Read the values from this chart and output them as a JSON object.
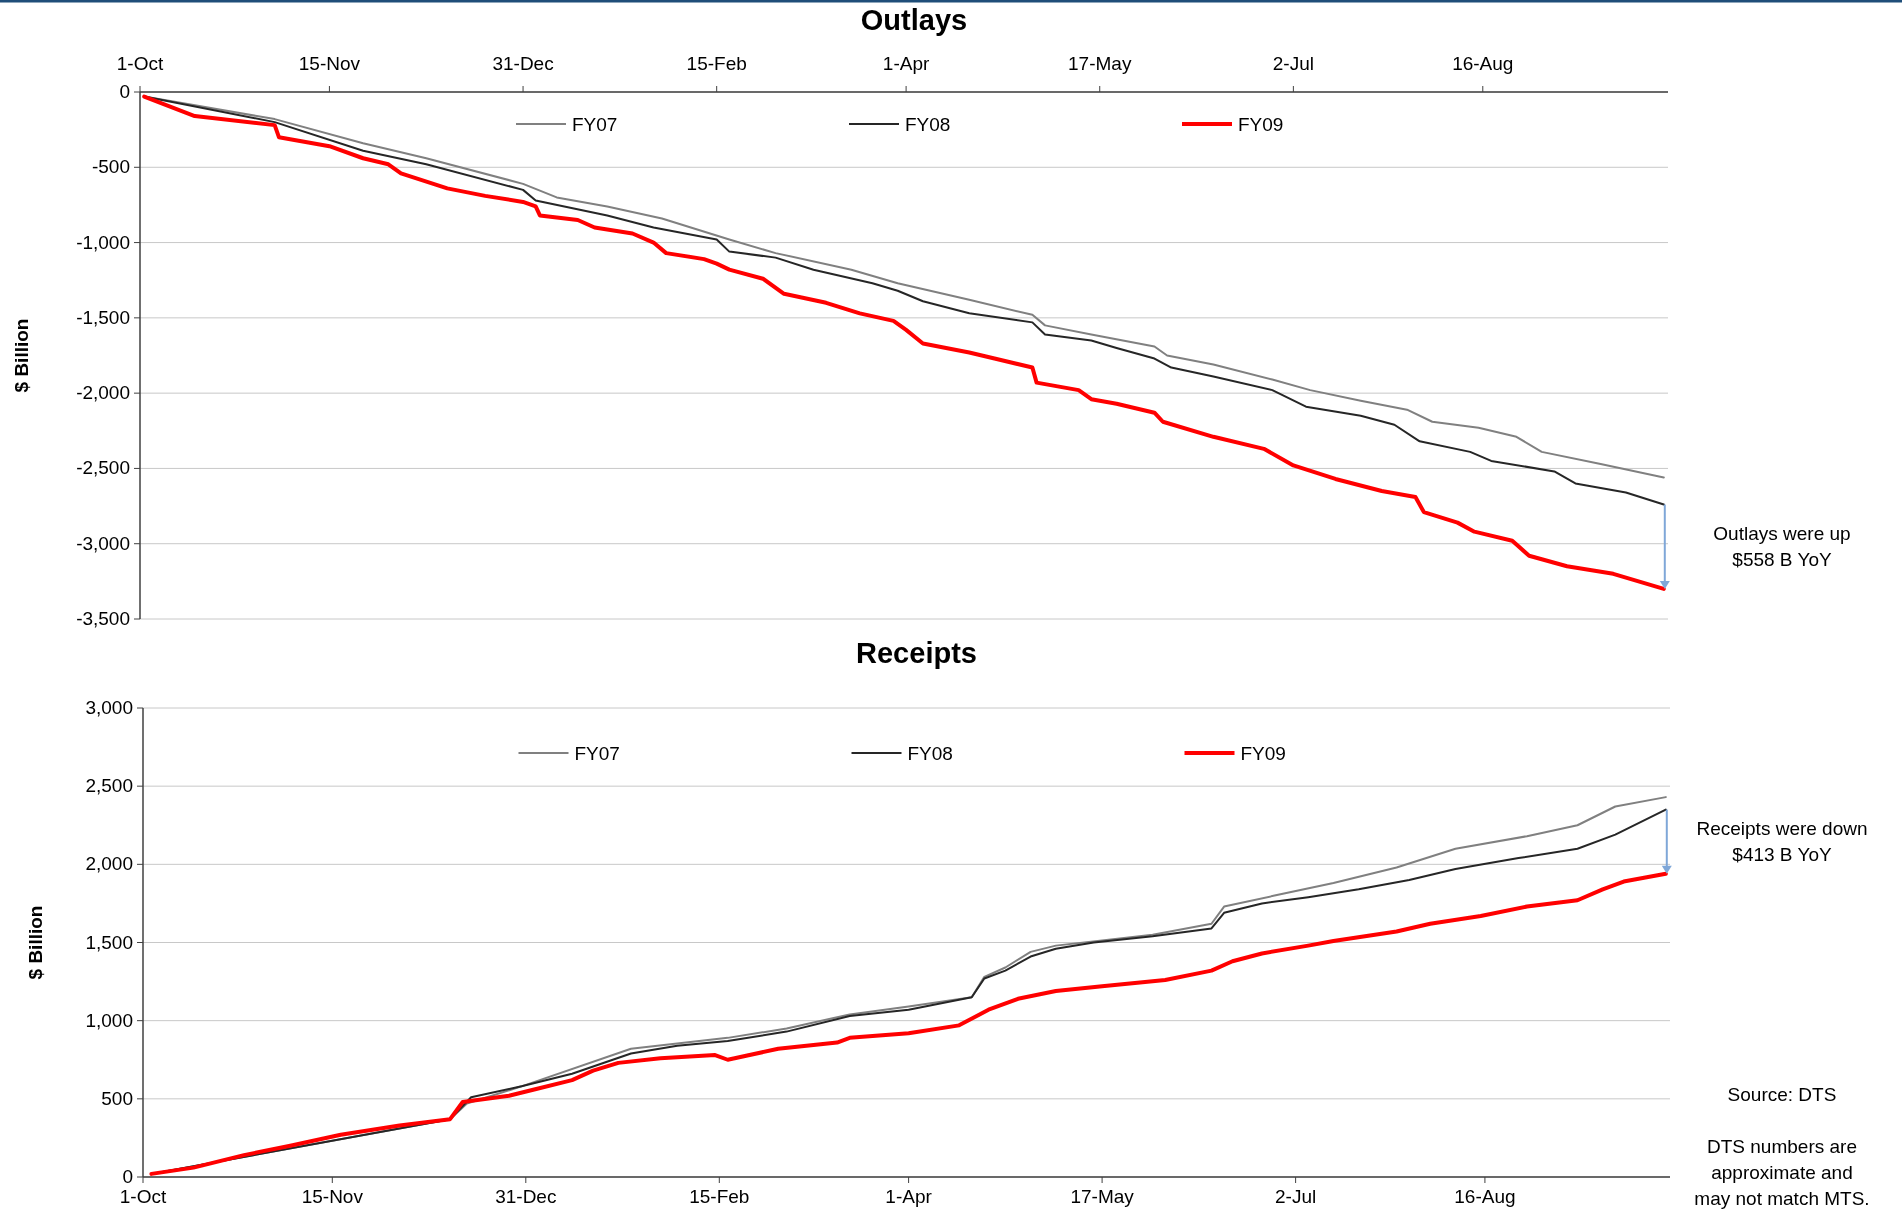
{
  "chart_data": [
    {
      "type": "line",
      "title": "Outlays",
      "ylabel": "$ Billion",
      "xlim": [
        "2008-10-01",
        "2009-09-29"
      ],
      "xticks": [
        {
          "value": "2008-10-01",
          "label": "1-Oct"
        },
        {
          "value": "2008-11-15",
          "label": "15-Nov"
        },
        {
          "value": "2008-12-31",
          "label": "31-Dec"
        },
        {
          "value": "2009-02-15",
          "label": "15-Feb"
        },
        {
          "value": "2009-04-01",
          "label": "1-Apr"
        },
        {
          "value": "2009-05-17",
          "label": "17-May"
        },
        {
          "value": "2009-07-02",
          "label": "2-Jul"
        },
        {
          "value": "2009-08-16",
          "label": "16-Aug"
        }
      ],
      "ylim": [
        -3500,
        0
      ],
      "yticks": [
        {
          "value": -3500,
          "label": "-3,500"
        },
        {
          "value": -3000,
          "label": "-3,000"
        },
        {
          "value": -2500,
          "label": "-2,500"
        },
        {
          "value": -2000,
          "label": "-2,000"
        },
        {
          "value": -1500,
          "label": "-1,500"
        },
        {
          "value": -1000,
          "label": "-1,000"
        },
        {
          "value": -500,
          "label": "-500"
        },
        {
          "value": 0,
          "label": "0"
        }
      ],
      "grid": "y",
      "legend": "top",
      "marker": "none",
      "line_style": "solid",
      "annotations": [
        "Outlays were up\n$558 B YoY"
      ],
      "series": [
        {
          "name": "FY07",
          "color": "#808080",
          "x": [
            "2008-10-02",
            "2008-11-02",
            "2008-11-23",
            "2008-12-08",
            "2008-12-31",
            "2009-01-08",
            "2009-01-20",
            "2009-02-02",
            "2009-02-18",
            "2009-03-01",
            "2009-03-19",
            "2009-03-30",
            "2009-04-16",
            "2009-05-01",
            "2009-05-04",
            "2009-05-15",
            "2009-05-30",
            "2009-06-02",
            "2009-06-13",
            "2009-06-27",
            "2009-07-06",
            "2009-07-18",
            "2009-07-29",
            "2009-08-04",
            "2009-08-15",
            "2009-08-24",
            "2009-08-30",
            "2009-09-13",
            "2009-09-28"
          ],
          "values": [
            -30,
            -180,
            -340,
            -440,
            -610,
            -700,
            -760,
            -840,
            -980,
            -1070,
            -1180,
            -1270,
            -1380,
            -1480,
            -1550,
            -1610,
            -1690,
            -1750,
            -1810,
            -1910,
            -1980,
            -2050,
            -2110,
            -2190,
            -2230,
            -2290,
            -2390,
            -2470,
            -2560
          ]
        },
        {
          "name": "FY08",
          "color": "#262626",
          "x": [
            "2008-10-02",
            "2008-11-02",
            "2008-11-23",
            "2008-12-08",
            "2008-12-31",
            "2009-01-03",
            "2009-01-20",
            "2009-01-31",
            "2009-02-15",
            "2009-02-18",
            "2009-03-01",
            "2009-03-10",
            "2009-03-24",
            "2009-03-30",
            "2009-04-05",
            "2009-04-16",
            "2009-05-01",
            "2009-05-04",
            "2009-05-15",
            "2009-05-21",
            "2009-05-30",
            "2009-06-03",
            "2009-06-13",
            "2009-06-27",
            "2009-07-05",
            "2009-07-18",
            "2009-07-26",
            "2009-08-01",
            "2009-08-13",
            "2009-08-18",
            "2009-09-02",
            "2009-09-07",
            "2009-09-19",
            "2009-09-28"
          ],
          "values": [
            -30,
            -200,
            -390,
            -480,
            -650,
            -720,
            -820,
            -900,
            -980,
            -1060,
            -1100,
            -1180,
            -1270,
            -1320,
            -1390,
            -1470,
            -1530,
            -1610,
            -1650,
            -1700,
            -1770,
            -1830,
            -1890,
            -1980,
            -2090,
            -2150,
            -2210,
            -2320,
            -2390,
            -2450,
            -2520,
            -2600,
            -2660,
            -2740
          ]
        },
        {
          "name": "FY09",
          "color": "#ff0000",
          "x": [
            "2008-10-02",
            "2008-10-14",
            "2008-11-02",
            "2008-11-03",
            "2008-11-15",
            "2008-11-23",
            "2008-11-29",
            "2008-12-02",
            "2008-12-13",
            "2008-12-22",
            "2008-12-31",
            "2009-01-03",
            "2009-01-04",
            "2009-01-13",
            "2009-01-17",
            "2009-01-26",
            "2009-01-31",
            "2009-02-03",
            "2009-02-12",
            "2009-02-15",
            "2009-02-18",
            "2009-02-26",
            "2009-03-03",
            "2009-03-13",
            "2009-03-21",
            "2009-03-29",
            "2009-04-01",
            "2009-04-05",
            "2009-04-16",
            "2009-04-22",
            "2009-05-01",
            "2009-05-02",
            "2009-05-12",
            "2009-05-15",
            "2009-05-21",
            "2009-05-30",
            "2009-06-01",
            "2009-06-13",
            "2009-06-25",
            "2009-07-02",
            "2009-07-12",
            "2009-07-23",
            "2009-07-31",
            "2009-08-02",
            "2009-08-10",
            "2009-08-14",
            "2009-08-23",
            "2009-08-27",
            "2009-09-05",
            "2009-09-16",
            "2009-09-28"
          ],
          "values": [
            -30,
            -160,
            -220,
            -300,
            -360,
            -440,
            -480,
            -540,
            -640,
            -690,
            -730,
            -760,
            -820,
            -850,
            -900,
            -940,
            -1000,
            -1070,
            -1110,
            -1140,
            -1180,
            -1240,
            -1340,
            -1400,
            -1470,
            -1520,
            -1580,
            -1670,
            -1730,
            -1770,
            -1830,
            -1930,
            -1980,
            -2040,
            -2070,
            -2130,
            -2190,
            -2290,
            -2370,
            -2480,
            -2570,
            -2650,
            -2690,
            -2790,
            -2860,
            -2920,
            -2980,
            -3080,
            -3150,
            -3200,
            -3300
          ]
        }
      ]
    },
    {
      "type": "line",
      "title": "Receipts",
      "ylabel": "$ Billion",
      "xlim": [
        "2008-10-01",
        "2009-09-29"
      ],
      "xticks": [
        {
          "value": "2008-10-01",
          "label": "1-Oct"
        },
        {
          "value": "2008-11-15",
          "label": "15-Nov"
        },
        {
          "value": "2008-12-31",
          "label": "31-Dec"
        },
        {
          "value": "2009-02-15",
          "label": "15-Feb"
        },
        {
          "value": "2009-04-01",
          "label": "1-Apr"
        },
        {
          "value": "2009-05-17",
          "label": "17-May"
        },
        {
          "value": "2009-07-02",
          "label": "2-Jul"
        },
        {
          "value": "2009-08-16",
          "label": "16-Aug"
        }
      ],
      "ylim": [
        0,
        3000
      ],
      "yticks": [
        {
          "value": 0,
          "label": "0"
        },
        {
          "value": 500,
          "label": "500"
        },
        {
          "value": 1000,
          "label": "1,000"
        },
        {
          "value": 1500,
          "label": "1,500"
        },
        {
          "value": 2000,
          "label": "2,000"
        },
        {
          "value": 2500,
          "label": "2,500"
        },
        {
          "value": 3000,
          "label": "3,000"
        }
      ],
      "grid": "y",
      "legend": "top",
      "marker": "none",
      "line_style": "solid",
      "annotations": [
        "Receipts were down\n$413 B YoY",
        "Source: DTS",
        "DTS numbers are\napproximate and\nmay not match MTS."
      ],
      "series": [
        {
          "name": "FY07",
          "color": "#808080",
          "x": [
            "2008-10-03",
            "2008-12-13",
            "2008-12-17",
            "2008-12-30",
            "2009-01-25",
            "2009-02-17",
            "2009-03-03",
            "2009-03-18",
            "2009-04-01",
            "2009-04-16",
            "2009-04-19",
            "2009-04-24",
            "2009-04-30",
            "2009-05-06",
            "2009-05-29",
            "2009-06-12",
            "2009-06-15",
            "2009-06-27",
            "2009-07-11",
            "2009-07-26",
            "2009-08-09",
            "2009-08-26",
            "2009-09-07",
            "2009-09-16",
            "2009-09-28"
          ],
          "values": [
            20,
            370,
            470,
            580,
            820,
            890,
            950,
            1040,
            1090,
            1150,
            1280,
            1340,
            1440,
            1480,
            1550,
            1620,
            1730,
            1800,
            1880,
            1980,
            2100,
            2180,
            2250,
            2370,
            2430
          ]
        },
        {
          "name": "FY08",
          "color": "#262626",
          "x": [
            "2008-10-03",
            "2008-12-13",
            "2008-12-18",
            "2008-12-30",
            "2009-01-11",
            "2009-01-25",
            "2009-02-05",
            "2009-02-17",
            "2009-03-03",
            "2009-03-18",
            "2009-04-01",
            "2009-04-16",
            "2009-04-19",
            "2009-04-24",
            "2009-04-30",
            "2009-05-06",
            "2009-05-15",
            "2009-05-29",
            "2009-06-12",
            "2009-06-15",
            "2009-06-24",
            "2009-07-05",
            "2009-07-17",
            "2009-07-29",
            "2009-08-09",
            "2009-08-24",
            "2009-09-07",
            "2009-09-16",
            "2009-09-28"
          ],
          "values": [
            20,
            370,
            510,
            580,
            660,
            790,
            840,
            870,
            930,
            1030,
            1070,
            1150,
            1270,
            1320,
            1410,
            1460,
            1500,
            1540,
            1590,
            1690,
            1750,
            1790,
            1840,
            1900,
            1970,
            2040,
            2100,
            2190,
            2350
          ]
        },
        {
          "name": "FY09",
          "color": "#ff0000",
          "x": [
            "2008-10-03",
            "2008-10-13",
            "2008-10-25",
            "2008-11-05",
            "2008-11-17",
            "2008-12-01",
            "2008-12-13",
            "2008-12-16",
            "2008-12-27",
            "2009-01-02",
            "2009-01-11",
            "2009-01-16",
            "2009-01-22",
            "2009-02-01",
            "2009-02-14",
            "2009-02-17",
            "2009-03-01",
            "2009-03-15",
            "2009-03-18",
            "2009-04-01",
            "2009-04-13",
            "2009-04-20",
            "2009-04-27",
            "2009-05-06",
            "2009-05-17",
            "2009-06-01",
            "2009-06-12",
            "2009-06-17",
            "2009-06-24",
            "2009-07-05",
            "2009-07-11",
            "2009-07-26",
            "2009-08-03",
            "2009-08-15",
            "2009-08-26",
            "2009-09-07",
            "2009-09-13",
            "2009-09-18",
            "2009-09-28"
          ],
          "values": [
            20,
            60,
            140,
            200,
            270,
            330,
            370,
            480,
            520,
            560,
            620,
            680,
            730,
            760,
            780,
            750,
            820,
            860,
            890,
            920,
            970,
            1070,
            1140,
            1190,
            1220,
            1260,
            1320,
            1380,
            1430,
            1480,
            1510,
            1570,
            1620,
            1670,
            1730,
            1770,
            1840,
            1890,
            1940
          ]
        }
      ]
    }
  ]
}
